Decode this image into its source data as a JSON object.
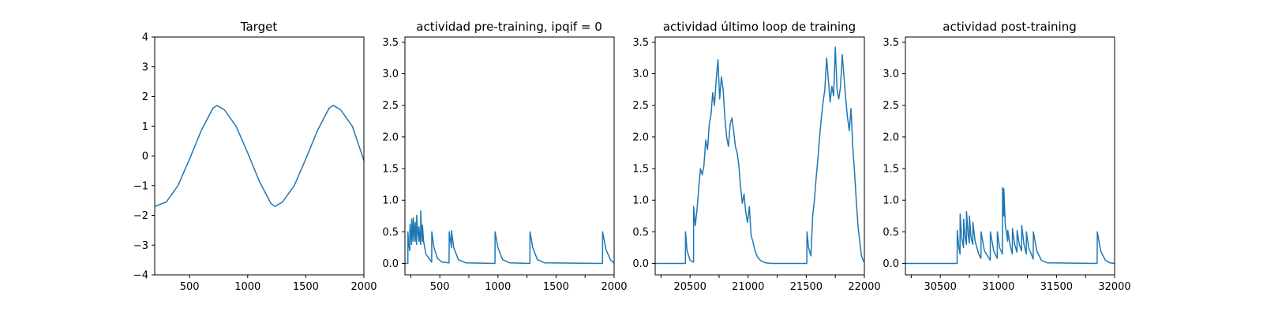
{
  "chart_data": [
    {
      "type": "line",
      "title": "Target",
      "xlabel": "",
      "ylabel": "",
      "xlim": [
        200,
        2000
      ],
      "ylim": [
        -4,
        4
      ],
      "xticks": [
        500,
        1000,
        1500,
        2000
      ],
      "yticks": [
        -4,
        -3,
        -2,
        -1,
        0,
        1,
        2,
        3,
        4
      ],
      "ytick_labels": [
        "−4",
        "−3",
        "−2",
        "−1",
        "0",
        "1",
        "2",
        "3",
        "4"
      ],
      "grid": false,
      "color": "#1f77b4",
      "series": [
        {
          "x": [
            200,
            300,
            400,
            500,
            600,
            700,
            735,
            800,
            900,
            1000,
            1100,
            1200,
            1235,
            1300,
            1400,
            1500,
            1600,
            1700,
            1735,
            1800,
            1900,
            2000
          ],
          "values": [
            -1.7,
            -1.55,
            -1.0,
            -0.1,
            0.85,
            1.6,
            1.7,
            1.55,
            1.0,
            0.1,
            -0.85,
            -1.6,
            -1.7,
            -1.55,
            -1.0,
            -0.1,
            0.85,
            1.6,
            1.7,
            1.55,
            1.0,
            -0.15
          ]
        }
      ]
    },
    {
      "type": "line",
      "title": "actividad pre-training, ipqif = 0",
      "xlabel": "",
      "ylabel": "",
      "xlim": [
        200,
        2000
      ],
      "ylim": [
        -0.18,
        3.58
      ],
      "xticks": [
        250,
        500,
        750,
        1000,
        1250,
        1500,
        1750,
        2000
      ],
      "xtick_labels": [
        "",
        "500",
        "",
        "1000",
        "",
        "1500",
        "",
        "2000"
      ],
      "yticks": [
        0,
        0.5,
        1.0,
        1.5,
        2.0,
        2.5,
        3.0,
        3.5
      ],
      "ytick_labels": [
        "0.0",
        "0.5",
        "1.0",
        "1.5",
        "2.0",
        "2.5",
        "3.0",
        "3.5"
      ],
      "grid": false,
      "color": "#1f77b4",
      "series": [
        {
          "x": [
            200,
            225,
            226,
            232,
            242,
            243,
            250,
            257,
            258,
            265,
            270,
            271,
            280,
            287,
            288,
            295,
            300,
            301,
            310,
            320,
            321,
            328,
            335,
            336,
            342,
            350,
            351,
            360,
            380,
            430,
            431,
            450,
            480,
            520,
            580,
            581,
            600,
            601,
            620,
            660,
            720,
            975,
            976,
            1000,
            1040,
            1100,
            1275,
            1276,
            1300,
            1340,
            1400,
            1900,
            1901,
            1930,
            1970,
            2000
          ],
          "values": [
            0,
            0,
            0.5,
            0.3,
            0.2,
            0.62,
            0.45,
            0.3,
            0.7,
            0.5,
            0.35,
            0.72,
            0.5,
            0.35,
            0.65,
            0.45,
            0.3,
            0.76,
            0.5,
            0.35,
            0.58,
            0.4,
            0.3,
            0.83,
            0.55,
            0.35,
            0.6,
            0.35,
            0.15,
            0.02,
            0.5,
            0.25,
            0.08,
            0.02,
            0.01,
            0.5,
            0.25,
            0.52,
            0.25,
            0.06,
            0.01,
            0.0,
            0.5,
            0.25,
            0.06,
            0.01,
            0.0,
            0.5,
            0.25,
            0.06,
            0.01,
            0.0,
            0.5,
            0.22,
            0.05,
            0.01
          ]
        }
      ]
    },
    {
      "type": "line",
      "title": "actividad último loop de training",
      "xlabel": "",
      "ylabel": "",
      "xlim": [
        20200,
        22000
      ],
      "ylim": [
        -0.18,
        3.58
      ],
      "xticks": [
        20250,
        20500,
        20750,
        21000,
        21250,
        21500,
        21750,
        22000
      ],
      "xtick_labels": [
        "",
        "20500",
        "",
        "21000",
        "",
        "21500",
        "",
        "22000"
      ],
      "yticks": [
        0,
        0.5,
        1.0,
        1.5,
        2.0,
        2.5,
        3.0,
        3.5
      ],
      "ytick_labels": [
        "0.0",
        "0.5",
        "1.0",
        "1.5",
        "2.0",
        "2.5",
        "3.0",
        "3.5"
      ],
      "grid": false,
      "color": "#1f77b4",
      "series": [
        {
          "x": [
            20200,
            20460,
            20461,
            20475,
            20500,
            20530,
            20531,
            20545,
            20560,
            20575,
            20590,
            20605,
            20620,
            20635,
            20650,
            20665,
            20680,
            20695,
            20710,
            20725,
            20740,
            20755,
            20770,
            20785,
            20800,
            20815,
            20830,
            20845,
            20860,
            20875,
            20890,
            20905,
            20920,
            20935,
            20950,
            20965,
            20980,
            20995,
            21010,
            21025,
            21040,
            21060,
            21080,
            21110,
            21150,
            21200,
            21505,
            21506,
            21520,
            21540,
            21555,
            21570,
            21585,
            21600,
            21615,
            21630,
            21645,
            21660,
            21675,
            21690,
            21705,
            21720,
            21735,
            21750,
            21765,
            21780,
            21795,
            21810,
            21825,
            21840,
            21855,
            21870,
            21885,
            21900,
            21915,
            21930,
            21945,
            21960,
            21975,
            21990,
            22000
          ],
          "values": [
            0,
            0,
            0.5,
            0.2,
            0.05,
            0.02,
            0.9,
            0.6,
            0.85,
            1.2,
            1.5,
            1.4,
            1.55,
            1.95,
            1.8,
            2.2,
            2.35,
            2.7,
            2.5,
            2.9,
            3.22,
            2.6,
            2.95,
            2.75,
            2.3,
            2.0,
            1.85,
            2.2,
            2.3,
            2.1,
            1.85,
            1.75,
            1.55,
            1.2,
            0.95,
            1.1,
            0.8,
            0.65,
            0.9,
            0.45,
            0.35,
            0.2,
            0.1,
            0.04,
            0.01,
            0.0,
            0.0,
            0.5,
            0.25,
            0.12,
            0.75,
            1.0,
            1.35,
            1.65,
            2.0,
            2.3,
            2.55,
            2.75,
            3.25,
            2.9,
            2.55,
            2.8,
            2.65,
            3.42,
            2.75,
            2.6,
            2.8,
            3.3,
            2.95,
            2.6,
            2.3,
            2.1,
            2.45,
            1.85,
            1.45,
            1.0,
            0.6,
            0.35,
            0.12,
            0.05,
            0.02
          ]
        }
      ]
    },
    {
      "type": "line",
      "title": "actividad post-training",
      "xlabel": "",
      "ylabel": "",
      "xlim": [
        30200,
        32000
      ],
      "ylim": [
        -0.18,
        3.58
      ],
      "xticks": [
        30250,
        30500,
        30750,
        31000,
        31250,
        31500,
        31750,
        32000
      ],
      "xtick_labels": [
        "",
        "30500",
        "",
        "31000",
        "",
        "31500",
        "",
        "32000"
      ],
      "yticks": [
        0,
        0.5,
        1.0,
        1.5,
        2.0,
        2.5,
        3.0,
        3.5
      ],
      "ytick_labels": [
        "0.0",
        "0.5",
        "1.0",
        "1.5",
        "2.0",
        "2.5",
        "3.0",
        "3.5"
      ],
      "grid": false,
      "color": "#1f77b4",
      "series": [
        {
          "x": [
            30200,
            30645,
            30646,
            30660,
            30670,
            30671,
            30685,
            30700,
            30701,
            30715,
            30725,
            30726,
            30740,
            30750,
            30751,
            30765,
            30780,
            30781,
            30800,
            30830,
            30850,
            30851,
            30880,
            30930,
            30931,
            30960,
            30990,
            30991,
            31010,
            31035,
            31036,
            31046,
            31047,
            31060,
            31080,
            31081,
            31100,
            31120,
            31121,
            31140,
            31160,
            31161,
            31180,
            31200,
            31201,
            31220,
            31240,
            31241,
            31260,
            31300,
            31301,
            31330,
            31370,
            31420,
            31850,
            31851,
            31880,
            31920,
            31960,
            32000
          ],
          "values": [
            0,
            0,
            0.52,
            0.25,
            0.15,
            0.78,
            0.4,
            0.25,
            0.7,
            0.4,
            0.3,
            0.82,
            0.45,
            0.32,
            0.75,
            0.4,
            0.3,
            0.65,
            0.35,
            0.15,
            0.08,
            0.5,
            0.2,
            0.05,
            0.5,
            0.2,
            0.08,
            0.5,
            0.25,
            0.15,
            1.2,
            0.75,
            1.18,
            0.6,
            0.35,
            0.52,
            0.3,
            0.15,
            0.55,
            0.3,
            0.18,
            0.52,
            0.3,
            0.2,
            0.6,
            0.3,
            0.15,
            0.5,
            0.25,
            0.07,
            0.5,
            0.2,
            0.05,
            0.01,
            0.0,
            0.5,
            0.2,
            0.05,
            0.01,
            0.0
          ]
        }
      ]
    }
  ]
}
